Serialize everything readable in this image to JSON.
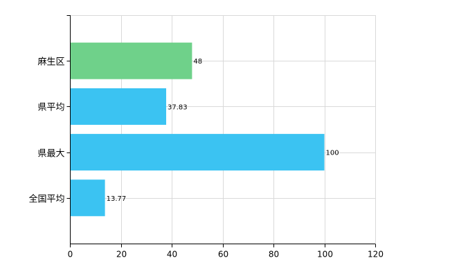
{
  "chart_data": {
    "type": "bar",
    "orientation": "horizontal",
    "categories": [
      "麻生区",
      "県平均",
      "県最大",
      "全国平均"
    ],
    "values": [
      48,
      37.83,
      100,
      13.77
    ],
    "value_labels": [
      "48",
      "37.83",
      "100",
      "13.77"
    ],
    "colors": [
      "#6fd18a",
      "#3bc3f2",
      "#3bc3f2",
      "#3bc3f2"
    ],
    "title": "",
    "xlabel": "",
    "ylabel": "",
    "xlim": [
      0,
      120
    ],
    "x_ticks": [
      0,
      20,
      40,
      60,
      80,
      100,
      120
    ],
    "x_tick_labels": [
      "0",
      "20",
      "40",
      "60",
      "80",
      "100",
      "120"
    ],
    "grid": true,
    "legend": "none"
  }
}
